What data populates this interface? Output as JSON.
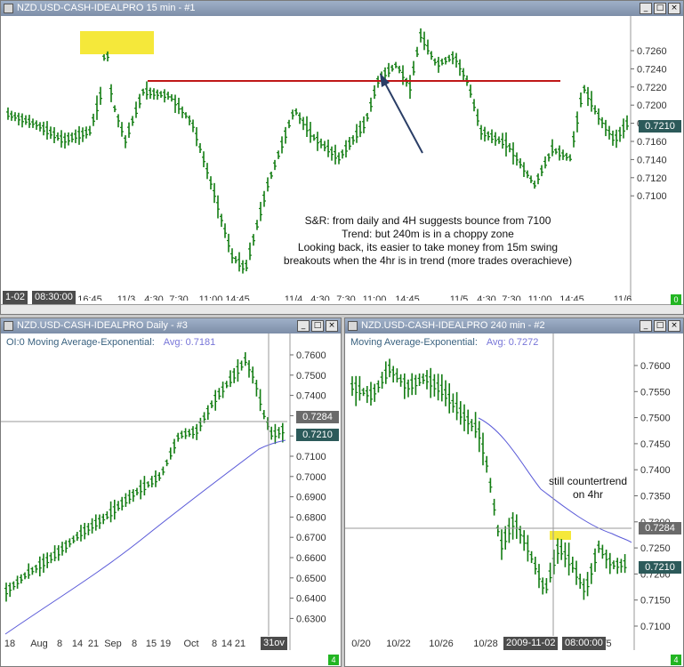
{
  "top": {
    "title": "NZD.USD-CASH-IDEALPRO  15 min  - #1",
    "yticks": [
      "0.7260",
      "0.7240",
      "0.7220",
      "0.7200",
      "0.7180",
      "0.7160",
      "0.7140",
      "0.7120",
      "0.7100"
    ],
    "last_price": "0.7210",
    "xstart_box": "1-02",
    "xtime_box": "08:30:00",
    "xticks": [
      "16:45",
      "11/3",
      "4:30",
      "7:30",
      "11:00",
      "14:45",
      "11/4",
      "4:30",
      "7:30",
      "11:00",
      "14:45",
      "11/5",
      "4:30",
      "7:30",
      "11:00",
      "14:45",
      "11/6"
    ],
    "annotation": [
      "S&R: from daily and 4H suggests bounce from 7100",
      "Trend:  but 240m is in a choppy zone",
      "Looking back, its easier to take money from 15m swing",
      "breakouts when the 4hr is in trend (more trades overachieve)"
    ],
    "corner": "0",
    "colors": {
      "bar": "#137d13",
      "sr_line": "#c01818",
      "highlight": "#f5e83a",
      "arrow": "#2a3e66"
    }
  },
  "daily": {
    "title": "NZD.USD-CASH-IDEALPRO  Daily  - #3",
    "indicator_prefix": "OI:0",
    "indicator": "Moving Average-Exponential:",
    "avg": "Avg: 0.7181",
    "yticks": [
      "0.7600",
      "0.7500",
      "0.7400",
      "0.7300",
      "0.7200",
      "0.7100",
      "0.7000",
      "0.6900",
      "0.6800",
      "0.6700",
      "0.6600",
      "0.6500",
      "0.6400",
      "0.6300"
    ],
    "level_box": "0.7284",
    "last_price": "0.7210",
    "xticks": [
      "18",
      "Aug",
      "8",
      "14",
      "21",
      "Sep",
      "8",
      "15",
      "19",
      "Oct",
      "8",
      "14",
      "21"
    ],
    "xend_box": "31ov",
    "corner": "4"
  },
  "h4": {
    "title": "NZD.USD-CASH-IDEALPRO  240 min  - #2",
    "indicator": "Moving Average-Exponential:",
    "avg": "Avg: 0.7272",
    "yticks": [
      "0.7600",
      "0.7550",
      "0.7500",
      "0.7450",
      "0.7400",
      "0.7350",
      "0.7300",
      "0.7250",
      "0.7200",
      "0.7150",
      "0.7100"
    ],
    "level_box": "0.7284",
    "last_price": "0.7210",
    "xticks": [
      "0/20",
      "10/22",
      "10/26",
      "10/28",
      "1/5"
    ],
    "xdate_box": "2009-11-02",
    "xtime_box": "08:00:00",
    "annotation": [
      "still countertrend",
      "on 4hr"
    ],
    "corner": "4"
  }
}
